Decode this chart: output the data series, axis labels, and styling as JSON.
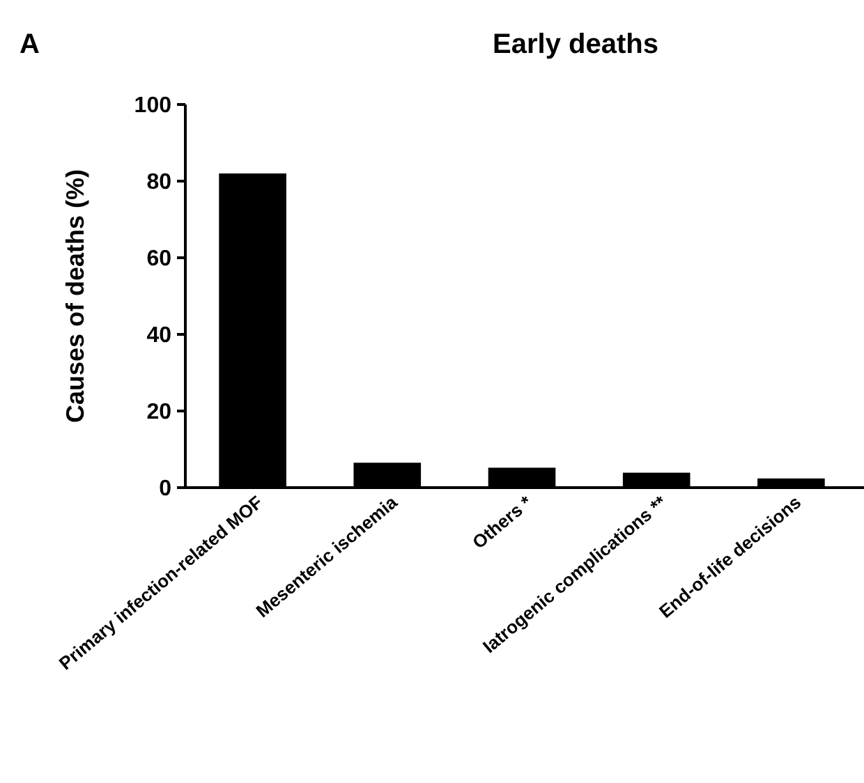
{
  "chart_data": {
    "type": "bar",
    "title": "Early deaths",
    "ylabel": "Causes of deaths (%)",
    "annotations": [
      "A"
    ],
    "categories": [
      "Primary infection-related MOF",
      "Mesenteric ischemia",
      "Others *",
      "Iatrogenic complications **",
      "End-of-life decisions"
    ],
    "values": [
      82,
      6.5,
      5.2,
      3.9,
      2.4
    ],
    "color": "#000000",
    "ylim": [
      0,
      100
    ],
    "yticks": [
      0,
      20,
      40,
      60,
      80,
      100
    ],
    "grid": false
  }
}
